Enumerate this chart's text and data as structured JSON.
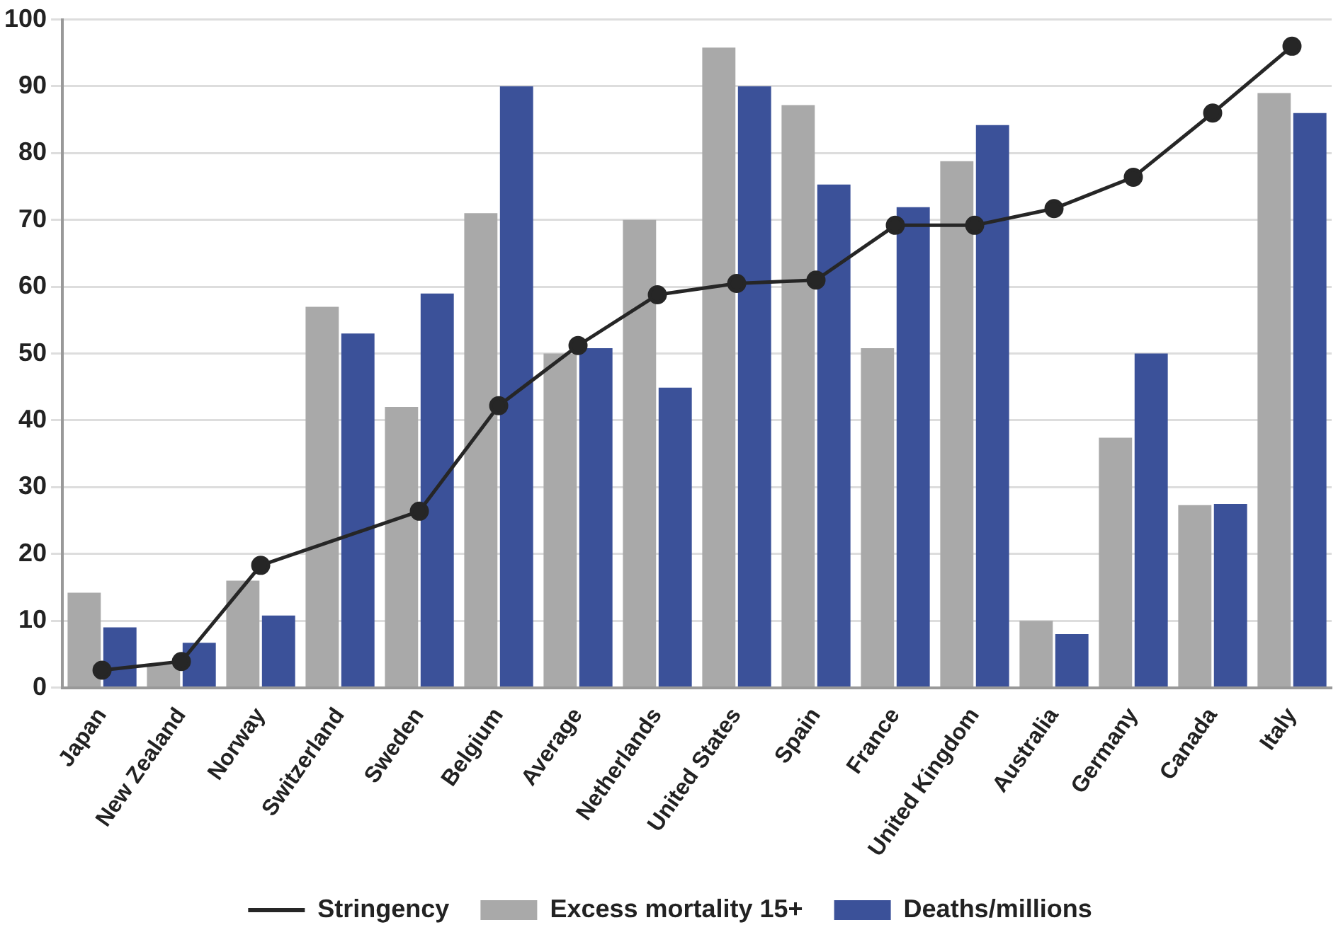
{
  "chart_data": {
    "type": "bar",
    "categories": [
      "Japan",
      "New Zealand",
      "Norway",
      "Switzerland",
      "Sweden",
      "Belgium",
      "Average",
      "Netherlands",
      "United States",
      "Spain",
      "France",
      "United Kingdom",
      "Australia",
      "Germany",
      "Canada",
      "Italy"
    ],
    "series": [
      {
        "name": "Stringency",
        "type": "line",
        "color": "#262626",
        "marker": "circle",
        "values": [
          2.6,
          3.9,
          18.3,
          null,
          26.4,
          42.2,
          51.2,
          58.8,
          60.5,
          61,
          69.2,
          69.2,
          71.7,
          76.4,
          86,
          96
        ]
      },
      {
        "name": "Excess mortality 15+",
        "color": "#a9a9a9",
        "values": [
          14.2,
          3.4,
          16,
          57,
          42,
          71,
          50,
          70,
          95.8,
          87.2,
          50.8,
          78.8,
          10,
          37.4,
          27.3,
          89
        ]
      },
      {
        "name": "Deaths/millions",
        "color": "#3b5199",
        "values": [
          9,
          6.7,
          10.8,
          53,
          59,
          90,
          50.8,
          44.9,
          90,
          75.3,
          71.9,
          84.2,
          8,
          50,
          27.5,
          86
        ]
      }
    ],
    "ylim": [
      0,
      100
    ],
    "yticks": [
      0,
      10,
      20,
      30,
      40,
      50,
      60,
      70,
      80,
      90,
      100
    ],
    "grid": "y",
    "legend": "bottom"
  }
}
